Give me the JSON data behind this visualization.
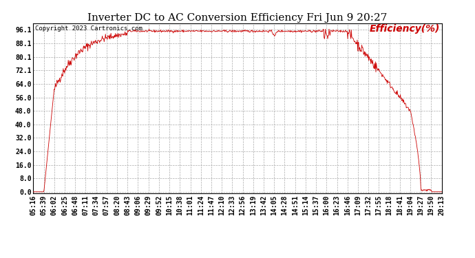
{
  "title": "Inverter DC to AC Conversion Efficiency Fri Jun 9 20:27",
  "copyright_text": "Copyright 2023 Cartronics.com",
  "legend_label": "Efficiency(%)",
  "line_color": "#cc0000",
  "background_color": "#ffffff",
  "grid_color": "#aaaaaa",
  "yticks": [
    0.0,
    8.0,
    16.0,
    24.0,
    32.0,
    40.0,
    48.0,
    56.0,
    64.0,
    72.1,
    80.1,
    88.1,
    96.1
  ],
  "ylim": [
    -1.0,
    100.0
  ],
  "x_labels": [
    "05:16",
    "05:39",
    "06:02",
    "06:25",
    "06:48",
    "07:11",
    "07:34",
    "07:57",
    "08:20",
    "08:43",
    "09:06",
    "09:29",
    "09:52",
    "10:15",
    "10:38",
    "11:01",
    "11:24",
    "11:47",
    "12:10",
    "12:33",
    "12:56",
    "13:19",
    "13:42",
    "14:05",
    "14:28",
    "14:51",
    "15:14",
    "15:37",
    "16:00",
    "16:23",
    "16:46",
    "17:09",
    "17:32",
    "17:55",
    "18:18",
    "18:41",
    "19:04",
    "19:27",
    "19:50",
    "20:13"
  ],
  "title_fontsize": 11,
  "axis_fontsize": 7,
  "copyright_fontsize": 6.5,
  "legend_fontsize": 10
}
